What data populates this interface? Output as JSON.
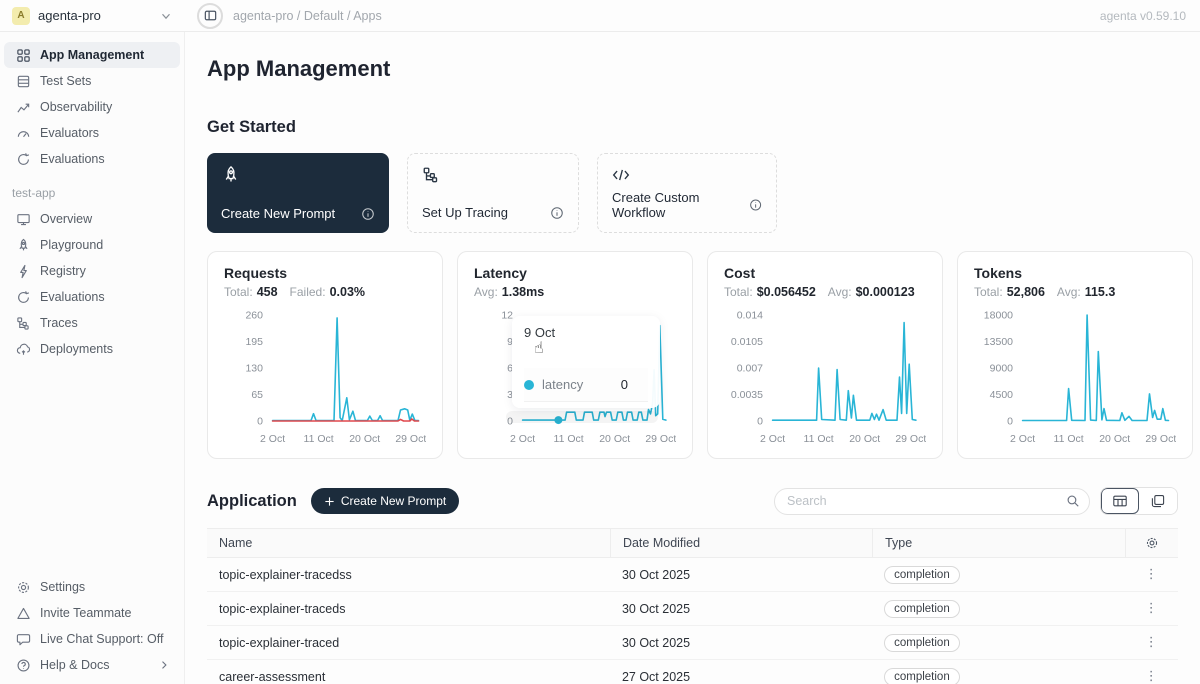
{
  "topbar": {
    "workspace": "agenta-pro",
    "avatar_letter": "A",
    "breadcrumb": "agenta-pro / Default / Apps",
    "version": "agenta v0.59.10"
  },
  "sidebar": {
    "main_items": [
      {
        "label": "App Management",
        "active": true
      },
      {
        "label": "Test Sets"
      },
      {
        "label": "Observability"
      },
      {
        "label": "Evaluators"
      },
      {
        "label": "Evaluations"
      }
    ],
    "project_label": "test-app",
    "project_items": [
      {
        "label": "Overview"
      },
      {
        "label": "Playground"
      },
      {
        "label": "Registry"
      },
      {
        "label": "Evaluations"
      },
      {
        "label": "Traces"
      },
      {
        "label": "Deployments"
      }
    ],
    "bottom_items": [
      {
        "label": "Settings"
      },
      {
        "label": "Invite Teammate"
      },
      {
        "label": "Live Chat Support: Off"
      },
      {
        "label": "Help & Docs"
      }
    ]
  },
  "page": {
    "title": "App Management",
    "get_started_title": "Get Started",
    "application_title": "Application"
  },
  "start_cards": [
    {
      "label": "Create New Prompt",
      "style": "dark",
      "icon": "rocket-icon"
    },
    {
      "label": "Set Up Tracing",
      "style": "light",
      "icon": "tracing-icon"
    },
    {
      "label": "Create Custom Workflow",
      "style": "light",
      "icon": "code-icon"
    }
  ],
  "application": {
    "create_button_label": "Create New Prompt",
    "search_placeholder": "Search"
  },
  "table": {
    "headers": [
      "Name",
      "Date Modified",
      "Type"
    ],
    "rows": [
      {
        "name": "topic-explainer-tracedss",
        "date": "30 Oct 2025",
        "type": "completion"
      },
      {
        "name": "topic-explainer-traceds",
        "date": "30 Oct 2025",
        "type": "completion"
      },
      {
        "name": "topic-explainer-traced",
        "date": "30 Oct 2025",
        "type": "completion"
      },
      {
        "name": "career-assessment",
        "date": "27 Oct 2025",
        "type": "completion"
      }
    ]
  },
  "tooltip": {
    "date": "9 Oct",
    "series": "latency",
    "value": "0"
  },
  "colors": {
    "accent": "#1c2c3c",
    "line": "#29b5d6",
    "failed": "#e0474b"
  },
  "chart_data": [
    {
      "type": "line",
      "title": "Requests",
      "stats": [
        {
          "label": "Total:",
          "value": "458"
        },
        {
          "label": "Failed:",
          "value": "0.03%"
        }
      ],
      "ylim": [
        0,
        260
      ],
      "yticks": [
        260,
        195,
        130,
        65,
        0
      ],
      "xticks": [
        {
          "label": "2 Oct",
          "day": 2
        },
        {
          "label": "11 Oct",
          "day": 11
        },
        {
          "label": "20 Oct",
          "day": 20
        },
        {
          "label": "29 Oct",
          "day": 29
        }
      ],
      "series": [
        {
          "name": "requests",
          "color": "#29b5d6",
          "points": [
            [
              2,
              1
            ],
            [
              9.5,
              1
            ],
            [
              10,
              18
            ],
            [
              10.5,
              1
            ],
            [
              14,
              1
            ],
            [
              14.6,
              253
            ],
            [
              15.2,
              8
            ],
            [
              15.6,
              1
            ],
            [
              16.5,
              57
            ],
            [
              17,
              3
            ],
            [
              17.7,
              24
            ],
            [
              18.2,
              1
            ],
            [
              20.5,
              1
            ],
            [
              21,
              12
            ],
            [
              21.5,
              1
            ],
            [
              22.5,
              1
            ],
            [
              23,
              13
            ],
            [
              23.5,
              1
            ],
            [
              25.5,
              1
            ],
            [
              26.5,
              1
            ],
            [
              27,
              27
            ],
            [
              27.8,
              30
            ],
            [
              28.4,
              27
            ],
            [
              28.8,
              2
            ],
            [
              29.3,
              17
            ],
            [
              29.8,
              1
            ],
            [
              30.5,
              1
            ]
          ]
        },
        {
          "name": "failed",
          "color": "#e0474b",
          "points": [
            [
              2,
              0
            ],
            [
              26.5,
              0
            ],
            [
              27,
              4
            ],
            [
              27.6,
              0
            ],
            [
              28.8,
              0
            ],
            [
              29.2,
              5
            ],
            [
              29.7,
              0
            ],
            [
              30.5,
              0
            ]
          ]
        }
      ]
    },
    {
      "type": "line",
      "title": "Latency",
      "stats": [
        {
          "label": "Avg:",
          "value": "1.38ms"
        }
      ],
      "ylim": [
        0,
        12
      ],
      "yticks": [
        12,
        9,
        6,
        3,
        0
      ],
      "xticks": [
        {
          "label": "2 Oct",
          "day": 2
        },
        {
          "label": "11 Oct",
          "day": 11
        },
        {
          "label": "20 Oct",
          "day": 20
        },
        {
          "label": "29 Oct",
          "day": 29
        }
      ],
      "dot": {
        "day": 9,
        "value": 0.1,
        "color": "#29b5d6"
      },
      "series": [
        {
          "name": "latency",
          "color": "#29b5d6",
          "points": [
            [
              2,
              0.1
            ],
            [
              10.3,
              0.1
            ],
            [
              10.6,
              1
            ],
            [
              12.2,
              1
            ],
            [
              12.5,
              0.1
            ],
            [
              13.8,
              0.1
            ],
            [
              14.1,
              1
            ],
            [
              15.6,
              1
            ],
            [
              15.9,
              0.1
            ],
            [
              16.8,
              0.1
            ],
            [
              17.1,
              1
            ],
            [
              17.9,
              1
            ],
            [
              18.1,
              0.5
            ],
            [
              18.4,
              1
            ],
            [
              19.2,
              1
            ],
            [
              19.5,
              0.1
            ],
            [
              20.3,
              0.1
            ],
            [
              20.6,
              1
            ],
            [
              21.4,
              1
            ],
            [
              21.7,
              0.1
            ],
            [
              22.2,
              0.1
            ],
            [
              22.5,
              1
            ],
            [
              23.3,
              1
            ],
            [
              23.6,
              0.1
            ],
            [
              24.4,
              0.1
            ],
            [
              24.7,
              1
            ],
            [
              25.2,
              1
            ],
            [
              25.5,
              0.1
            ],
            [
              26.3,
              0.1
            ],
            [
              26.6,
              1.3
            ],
            [
              27,
              0.8
            ],
            [
              27.4,
              2
            ],
            [
              27.7,
              5.8
            ],
            [
              28,
              0.6
            ],
            [
              28.4,
              0.8
            ],
            [
              28.8,
              10.8
            ],
            [
              29.4,
              0.2
            ],
            [
              30,
              0.1
            ]
          ]
        }
      ]
    },
    {
      "type": "line",
      "title": "Cost",
      "stats": [
        {
          "label": "Total:",
          "value": "$0.056452"
        },
        {
          "label": "Avg:",
          "value": "$0.000123"
        }
      ],
      "ylim": [
        0,
        0.014
      ],
      "yticks": [
        0.014,
        0.0105,
        0.007,
        0.0035,
        0
      ],
      "xticks": [
        {
          "label": "2 Oct",
          "day": 2
        },
        {
          "label": "11 Oct",
          "day": 11
        },
        {
          "label": "20 Oct",
          "day": 20
        },
        {
          "label": "29 Oct",
          "day": 29
        }
      ],
      "series": [
        {
          "name": "cost",
          "color": "#29b5d6",
          "points": [
            [
              2,
              0.0001
            ],
            [
              10.6,
              0.0001
            ],
            [
              11,
              0.007
            ],
            [
              11.6,
              0.0002
            ],
            [
              14.2,
              0.0001
            ],
            [
              14.6,
              0.0068
            ],
            [
              15.2,
              0.0002
            ],
            [
              16.4,
              0.0001
            ],
            [
              16.8,
              0.004
            ],
            [
              17.4,
              0.0004
            ],
            [
              17.8,
              0.0034
            ],
            [
              18.4,
              0.0001
            ],
            [
              21,
              0.0001
            ],
            [
              21.4,
              0.001
            ],
            [
              21.9,
              0.0002
            ],
            [
              22.3,
              0.0009
            ],
            [
              22.8,
              0.0001
            ],
            [
              23.6,
              0.0015
            ],
            [
              24.2,
              0.0001
            ],
            [
              26.3,
              0.0001
            ],
            [
              26.8,
              0.0058
            ],
            [
              27.2,
              0.001
            ],
            [
              27.7,
              0.013
            ],
            [
              28.2,
              0.001
            ],
            [
              28.7,
              0.0075
            ],
            [
              29.3,
              0.0002
            ],
            [
              30,
              0.0001
            ]
          ]
        }
      ]
    },
    {
      "type": "line",
      "title": "Tokens",
      "stats": [
        {
          "label": "Total:",
          "value": "52,806"
        },
        {
          "label": "Avg:",
          "value": "115.3"
        }
      ],
      "ylim": [
        0,
        18000
      ],
      "yticks": [
        18000,
        13500,
        9000,
        4500,
        0
      ],
      "xticks": [
        {
          "label": "2 Oct",
          "day": 2
        },
        {
          "label": "11 Oct",
          "day": 11
        },
        {
          "label": "20 Oct",
          "day": 20
        },
        {
          "label": "29 Oct",
          "day": 29
        }
      ],
      "series": [
        {
          "name": "tokens",
          "color": "#29b5d6",
          "points": [
            [
              2,
              80
            ],
            [
              10.6,
              80
            ],
            [
              11,
              5500
            ],
            [
              11.6,
              120
            ],
            [
              14.2,
              80
            ],
            [
              14.6,
              18000
            ],
            [
              15.3,
              150
            ],
            [
              16.4,
              80
            ],
            [
              16.8,
              11800
            ],
            [
              17.5,
              200
            ],
            [
              17.9,
              2100
            ],
            [
              18.4,
              120
            ],
            [
              21,
              80
            ],
            [
              21.4,
              1400
            ],
            [
              22,
              120
            ],
            [
              22.8,
              800
            ],
            [
              23.4,
              80
            ],
            [
              26.3,
              80
            ],
            [
              26.8,
              4600
            ],
            [
              27.4,
              600
            ],
            [
              27.8,
              1800
            ],
            [
              28.3,
              300
            ],
            [
              29,
              300
            ],
            [
              29.4,
              2100
            ],
            [
              29.9,
              120
            ],
            [
              30.5,
              80
            ]
          ]
        }
      ]
    }
  ]
}
